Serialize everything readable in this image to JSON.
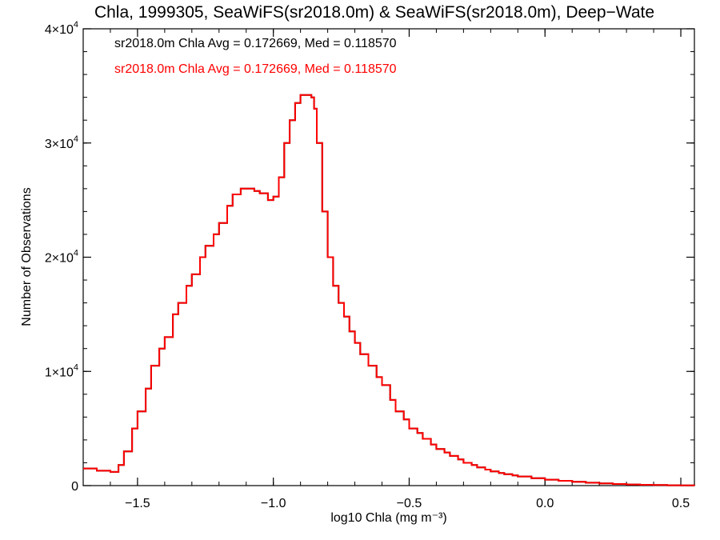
{
  "chart_data": {
    "type": "line",
    "title": "Chla, 1999305, SeaWiFS(sr2018.0m) & SeaWiFS(sr2018.0m), Deep−Wate",
    "xlabel": "log10 Chla (mg m⁻³)",
    "ylabel": "Number of Observations",
    "xlim": [
      -1.7,
      0.55
    ],
    "ylim": [
      0,
      40000
    ],
    "x_ticks": [
      -1.5,
      -1.0,
      -0.5,
      0.0,
      0.5
    ],
    "x_tick_labels": [
      "−1.5",
      "−1.0",
      "−0.5",
      "0.0",
      "0.5"
    ],
    "y_ticks": [
      0,
      10000,
      20000,
      30000,
      40000
    ],
    "y_tick_labels": [
      {
        "base": "0",
        "exp": ""
      },
      {
        "base": "1×10",
        "exp": "4"
      },
      {
        "base": "2×10",
        "exp": "4"
      },
      {
        "base": "3×10",
        "exp": "4"
      },
      {
        "base": "4×10",
        "exp": "4"
      }
    ],
    "grid": false,
    "legend_position": "top-left",
    "colors": {
      "series_1": "#000000",
      "series_2": "#ff0000"
    },
    "annotations": [
      "sr2018.0m Chla Avg = 0.172669, Med = 0.118570",
      "sr2018.0m Chla Avg = 0.172669, Med = 0.118570"
    ],
    "series": [
      {
        "color": "#000000",
        "x": [
          -1.7,
          -1.65,
          -1.6,
          -1.57,
          -1.55,
          -1.52,
          -1.5,
          -1.47,
          -1.45,
          -1.42,
          -1.4,
          -1.37,
          -1.35,
          -1.32,
          -1.3,
          -1.27,
          -1.25,
          -1.22,
          -1.2,
          -1.17,
          -1.15,
          -1.12,
          -1.1,
          -1.07,
          -1.05,
          -1.02,
          -1.0,
          -0.98,
          -0.96,
          -0.94,
          -0.92,
          -0.9,
          -0.88,
          -0.86,
          -0.85,
          -0.84,
          -0.82,
          -0.8,
          -0.78,
          -0.76,
          -0.74,
          -0.72,
          -0.7,
          -0.68,
          -0.65,
          -0.62,
          -0.6,
          -0.57,
          -0.55,
          -0.52,
          -0.5,
          -0.47,
          -0.45,
          -0.42,
          -0.4,
          -0.37,
          -0.35,
          -0.32,
          -0.3,
          -0.27,
          -0.25,
          -0.22,
          -0.2,
          -0.17,
          -0.15,
          -0.12,
          -0.1,
          -0.05,
          0.0,
          0.05,
          0.1,
          0.15,
          0.2,
          0.25,
          0.3,
          0.35,
          0.4,
          0.45,
          0.5,
          0.55
        ],
        "y": [
          1500,
          1300,
          1200,
          1800,
          3000,
          5000,
          6500,
          8500,
          10500,
          12000,
          13000,
          15000,
          16000,
          17500,
          18500,
          20000,
          21000,
          22000,
          23000,
          24500,
          25500,
          26000,
          26000,
          25800,
          25600,
          25000,
          25300,
          27000,
          30000,
          32000,
          33500,
          34200,
          34200,
          34000,
          33000,
          30000,
          24000,
          20000,
          17500,
          16000,
          14800,
          13500,
          12500,
          11500,
          10500,
          9500,
          8800,
          7500,
          6500,
          5800,
          5000,
          4600,
          4100,
          3600,
          3200,
          2900,
          2600,
          2300,
          2000,
          1800,
          1600,
          1400,
          1250,
          1100,
          1000,
          900,
          800,
          650,
          520,
          420,
          330,
          250,
          190,
          140,
          100,
          70,
          50,
          30,
          20,
          10
        ]
      },
      {
        "color": "#ff0000",
        "x": [
          -1.7,
          -1.65,
          -1.6,
          -1.57,
          -1.55,
          -1.52,
          -1.5,
          -1.47,
          -1.45,
          -1.42,
          -1.4,
          -1.37,
          -1.35,
          -1.32,
          -1.3,
          -1.27,
          -1.25,
          -1.22,
          -1.2,
          -1.17,
          -1.15,
          -1.12,
          -1.1,
          -1.07,
          -1.05,
          -1.02,
          -1.0,
          -0.98,
          -0.96,
          -0.94,
          -0.92,
          -0.9,
          -0.88,
          -0.86,
          -0.85,
          -0.84,
          -0.82,
          -0.8,
          -0.78,
          -0.76,
          -0.74,
          -0.72,
          -0.7,
          -0.68,
          -0.65,
          -0.62,
          -0.6,
          -0.57,
          -0.55,
          -0.52,
          -0.5,
          -0.47,
          -0.45,
          -0.42,
          -0.4,
          -0.37,
          -0.35,
          -0.32,
          -0.3,
          -0.27,
          -0.25,
          -0.22,
          -0.2,
          -0.17,
          -0.15,
          -0.12,
          -0.1,
          -0.05,
          0.0,
          0.05,
          0.1,
          0.15,
          0.2,
          0.25,
          0.3,
          0.35,
          0.4,
          0.45,
          0.5,
          0.55
        ],
        "y": [
          1500,
          1300,
          1200,
          1800,
          3000,
          5000,
          6500,
          8500,
          10500,
          12000,
          13000,
          15000,
          16000,
          17500,
          18500,
          20000,
          21000,
          22000,
          23000,
          24500,
          25500,
          26000,
          26000,
          25800,
          25600,
          25000,
          25300,
          27000,
          30000,
          32000,
          33500,
          34200,
          34200,
          34000,
          33000,
          30000,
          24000,
          20000,
          17500,
          16000,
          14800,
          13500,
          12500,
          11500,
          10500,
          9500,
          8800,
          7500,
          6500,
          5800,
          5000,
          4600,
          4100,
          3600,
          3200,
          2900,
          2600,
          2300,
          2000,
          1800,
          1600,
          1400,
          1250,
          1100,
          1000,
          900,
          800,
          650,
          520,
          420,
          330,
          250,
          190,
          140,
          100,
          70,
          50,
          30,
          20,
          10
        ]
      }
    ]
  }
}
